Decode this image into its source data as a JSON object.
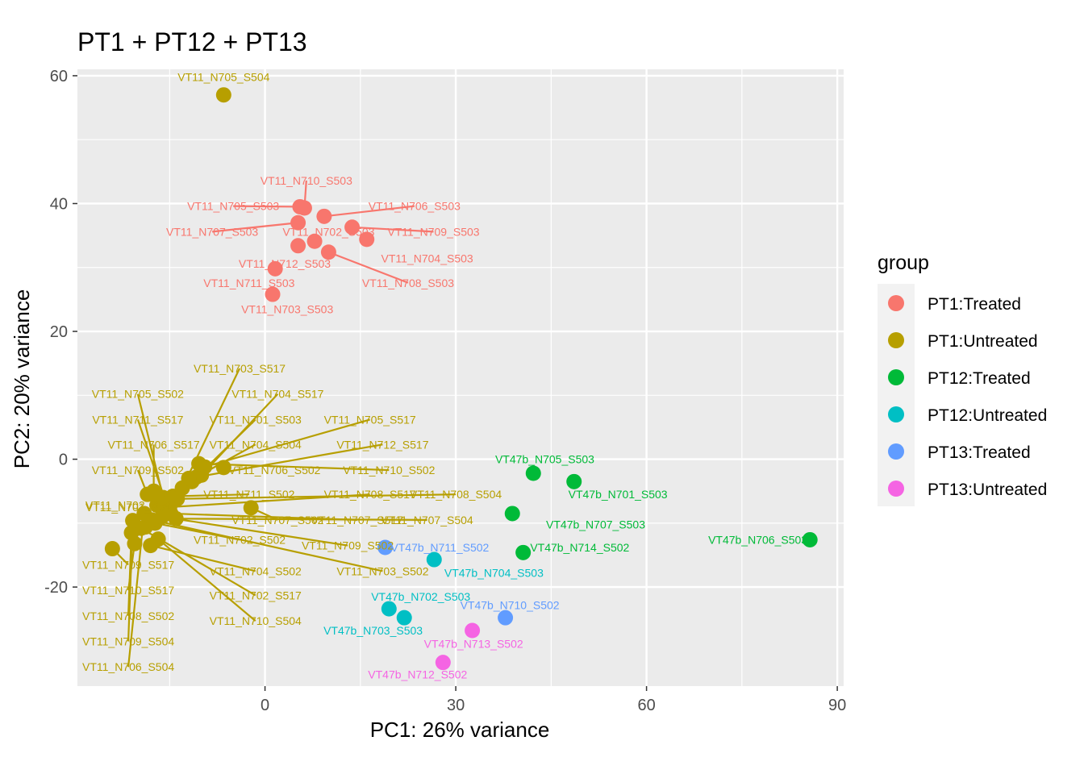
{
  "chart_data": {
    "type": "scatter",
    "title": "PT1 + PT12 + PT13",
    "xlabel": "PC1: 26% variance",
    "ylabel": "PC2: 20% variance",
    "xlim": [
      -29.5,
      91
    ],
    "ylim": [
      -35.5,
      61
    ],
    "xticks": [
      0,
      30,
      60,
      90
    ],
    "yticks": [
      -20,
      0,
      20,
      40,
      60
    ],
    "grid": true,
    "legend": {
      "title": "group",
      "position": "right",
      "entries": [
        {
          "name": "PT1:Treated",
          "color": "#F8766D"
        },
        {
          "name": "PT1:Untreated",
          "color": "#B79F00"
        },
        {
          "name": "PT12:Treated",
          "color": "#00BA38"
        },
        {
          "name": "PT12:Untreated",
          "color": "#00BFC4"
        },
        {
          "name": "PT13:Treated",
          "color": "#619CFF"
        },
        {
          "name": "PT13:Untreated",
          "color": "#F564E3"
        }
      ]
    },
    "points": [
      {
        "label": "VT11_N705_S504",
        "group": "PT1:Untreated",
        "x": -6.5,
        "y": 57.0,
        "lx": -6.5,
        "ly": 59.8,
        "leader": false
      },
      {
        "label": "VT11_N710_S503",
        "group": "PT1:Treated",
        "x": 6.2,
        "y": 39.3,
        "lx": 6.5,
        "ly": 43.6,
        "leader": true
      },
      {
        "label": "VT11_N705_S503",
        "group": "PT1:Treated",
        "x": 5.5,
        "y": 39.5,
        "lx": -5.0,
        "ly": 39.6,
        "leader": true
      },
      {
        "label": "VT11_N706_S503",
        "group": "PT1:Treated",
        "x": 9.3,
        "y": 38.0,
        "lx": 23.5,
        "ly": 39.6,
        "leader": true
      },
      {
        "label": "VT11_N707_S503",
        "group": "PT1:Treated",
        "x": 5.2,
        "y": 37.0,
        "lx": -8.3,
        "ly": 35.6,
        "leader": true
      },
      {
        "label": "VT11_N702_S503",
        "group": "PT1:Treated",
        "x": 7.8,
        "y": 34.1,
        "lx": 10.0,
        "ly": 35.6,
        "leader": false
      },
      {
        "label": "VT11_N709_S503",
        "group": "PT1:Treated",
        "x": 13.7,
        "y": 36.3,
        "lx": 26.5,
        "ly": 35.6,
        "leader": true
      },
      {
        "label": "VT11_N712_S503",
        "group": "PT1:Treated",
        "x": 5.2,
        "y": 33.4,
        "lx": 3.1,
        "ly": 30.6,
        "leader": false
      },
      {
        "label": "VT11_N704_S503",
        "group": "PT1:Treated",
        "x": 16.0,
        "y": 34.4,
        "lx": 25.5,
        "ly": 31.4,
        "leader": false
      },
      {
        "label": "VT11_N711_S503",
        "group": "PT1:Treated",
        "x": 1.6,
        "y": 29.8,
        "lx": -2.5,
        "ly": 27.6,
        "leader": false
      },
      {
        "label": "VT11_N708_S503",
        "group": "PT1:Treated",
        "x": 10.0,
        "y": 32.4,
        "lx": 22.5,
        "ly": 27.6,
        "leader": true
      },
      {
        "label": "VT11_N703_S503",
        "group": "PT1:Treated",
        "x": 1.2,
        "y": 25.8,
        "lx": 3.5,
        "ly": 23.5,
        "leader": false
      },
      {
        "label": "VT11_N703_S517",
        "group": "PT1:Untreated",
        "x": -13.0,
        "y": -4.5,
        "lx": -4.0,
        "ly": 14.2,
        "leader": true
      },
      {
        "label": "VT11_N705_S502",
        "group": "PT1:Untreated",
        "x": -16.0,
        "y": -6.0,
        "lx": -20.0,
        "ly": 10.2,
        "leader": true
      },
      {
        "label": "VT11_N704_S517",
        "group": "PT1:Untreated",
        "x": -10.0,
        "y": -2.5,
        "lx": 2.0,
        "ly": 10.2,
        "leader": true
      },
      {
        "label": "VT11_N711_S517",
        "group": "PT1:Untreated",
        "x": -15.5,
        "y": -7.0,
        "lx": -20.0,
        "ly": 6.2,
        "leader": true
      },
      {
        "label": "VT11_N701_S503",
        "group": "PT1:Untreated",
        "x": -11.5,
        "y": -3.5,
        "lx": -1.5,
        "ly": 6.2,
        "leader": true
      },
      {
        "label": "VT11_N705_S517",
        "group": "PT1:Untreated",
        "x": -9.5,
        "y": -1.2,
        "lx": 16.5,
        "ly": 6.2,
        "leader": true
      },
      {
        "label": "VT11_N706_S517",
        "group": "PT1:Untreated",
        "x": -17.5,
        "y": -5.0,
        "lx": -17.5,
        "ly": 2.3,
        "leader": true
      },
      {
        "label": "VT11_N704_S504",
        "group": "PT1:Untreated",
        "x": -10.8,
        "y": -2.8,
        "lx": -1.5,
        "ly": 2.3,
        "leader": true
      },
      {
        "label": "VT11_N712_S517",
        "group": "PT1:Untreated",
        "x": -12.0,
        "y": -3.0,
        "lx": 18.5,
        "ly": 2.3,
        "leader": true
      },
      {
        "label": "VT11_N706_S502",
        "group": "PT1:Untreated",
        "x": -6.5,
        "y": -1.3,
        "lx": 1.5,
        "ly": -1.7,
        "leader": false
      },
      {
        "label": "VT11_N710_S502",
        "group": "PT1:Untreated",
        "x": -10.4,
        "y": -0.7,
        "lx": 19.5,
        "ly": -1.7,
        "leader": true
      },
      {
        "label": "VT11_N709_S502",
        "group": "PT1:Untreated",
        "x": -18.5,
        "y": -5.5,
        "lx": -20.0,
        "ly": -1.7,
        "leader": true
      },
      {
        "label": "VT11_N711_S502",
        "group": "PT1:Untreated",
        "x": -14.5,
        "y": -5.8,
        "lx": -2.5,
        "ly": -5.5,
        "leader": true
      },
      {
        "label": "VT11_N708_S517",
        "group": "PT1:Untreated",
        "x": -15.0,
        "y": -7.5,
        "lx": 16.5,
        "ly": -5.5,
        "leader": true
      },
      {
        "label": "VT11_N708_S504",
        "group": "PT1:Untreated",
        "x": -13.8,
        "y": -6.2,
        "lx": 30.0,
        "ly": -5.5,
        "leader": true
      },
      {
        "label": "VT11_N702_S504",
        "group": "PT1:Untreated",
        "x": -17.0,
        "y": -7.2,
        "lx": -21.0,
        "ly": -7.2,
        "leader": false
      },
      {
        "label": "VT11_N707_S502",
        "group": "PT1:Untreated",
        "x": -2.2,
        "y": -7.6,
        "lx": 2.0,
        "ly": -9.5,
        "leader": true
      },
      {
        "label": "VT11_N707_S517",
        "group": "PT1:Untreated",
        "x": -14.8,
        "y": -8.5,
        "lx": 14.5,
        "ly": -9.5,
        "leader": true
      },
      {
        "label": "VT11_N707_S504",
        "group": "PT1:Untreated",
        "x": -14.0,
        "y": -9.3,
        "lx": 25.5,
        "ly": -9.5,
        "leader": true
      },
      {
        "label": "VT11_N701_S517",
        "group": "PT1:Untreated",
        "x": -18.8,
        "y": -10.6,
        "lx": -21.0,
        "ly": -7.5,
        "leader": false
      },
      {
        "label": "VT11_N702_S502",
        "group": "PT1:Untreated",
        "x": -17.3,
        "y": -10.0,
        "lx": -4.0,
        "ly": -12.6,
        "leader": true
      },
      {
        "label": "VT11_N709_S502",
        "group": "PT1:Untreated",
        "x": -16.2,
        "y": -9.0,
        "lx": 13.0,
        "ly": -13.5,
        "leader": true
      },
      {
        "label": "VT11_N703_S502",
        "group": "PT1:Untreated",
        "x": -17.8,
        "y": -9.5,
        "lx": 18.5,
        "ly": -17.5,
        "leader": true
      },
      {
        "label": "VT11_N709_S517",
        "group": "PT1:Untreated",
        "x": -24.0,
        "y": -14.0,
        "lx": -21.5,
        "ly": -16.5,
        "leader": true
      },
      {
        "label": "VT11_N704_S502",
        "group": "PT1:Untreated",
        "x": -18.0,
        "y": -13.5,
        "lx": -1.5,
        "ly": -17.5,
        "leader": true
      },
      {
        "label": "VT11_N710_S517",
        "group": "PT1:Untreated",
        "x": -20.5,
        "y": -13.2,
        "lx": -21.5,
        "ly": -20.5,
        "leader": true
      },
      {
        "label": "VT11_N702_S517",
        "group": "PT1:Untreated",
        "x": -19.5,
        "y": -10.8,
        "lx": -1.5,
        "ly": -21.3,
        "leader": true
      },
      {
        "label": "VT11_N708_S502",
        "group": "PT1:Untreated",
        "x": -21.0,
        "y": -11.5,
        "lx": -21.5,
        "ly": -24.5,
        "leader": true
      },
      {
        "label": "VT11_N710_S504",
        "group": "PT1:Untreated",
        "x": -16.8,
        "y": -12.5,
        "lx": -1.5,
        "ly": -25.3,
        "leader": true
      },
      {
        "label": "VT11_N709_S504",
        "group": "PT1:Untreated",
        "x": -20.8,
        "y": -9.6,
        "lx": -21.5,
        "ly": -28.5,
        "leader": true
      },
      {
        "label": "VT11_N706_S504",
        "group": "PT1:Untreated",
        "x": -19.0,
        "y": -8.5,
        "lx": -21.5,
        "ly": -32.5,
        "leader": true
      },
      {
        "label": "VT47b_N705_S503",
        "group": "PT12:Treated",
        "x": 42.2,
        "y": -2.2,
        "lx": 44.0,
        "ly": 0.0,
        "leader": false
      },
      {
        "label": "VT47b_N701_S503",
        "group": "PT12:Treated",
        "x": 48.6,
        "y": -3.5,
        "lx": 55.5,
        "ly": -5.5,
        "leader": false
      },
      {
        "label": "VT47b_N707_S503",
        "group": "PT12:Treated",
        "x": 38.9,
        "y": -8.5,
        "lx": 52.0,
        "ly": -10.2,
        "leader": false
      },
      {
        "label": "VT47b_N714_S502",
        "group": "PT12:Treated",
        "x": 40.6,
        "y": -14.6,
        "lx": 49.5,
        "ly": -13.8,
        "leader": false
      },
      {
        "label": "VT47b_N706_S503",
        "group": "PT12:Treated",
        "x": 85.7,
        "y": -12.6,
        "lx": 77.5,
        "ly": -12.6,
        "leader": false
      },
      {
        "label": "VT47b_N704_S503",
        "group": "PT12:Untreated",
        "x": 26.6,
        "y": -15.7,
        "lx": 36.0,
        "ly": -17.8,
        "leader": false
      },
      {
        "label": "VT47b_N702_S503",
        "group": "PT12:Untreated",
        "x": 19.5,
        "y": -23.4,
        "lx": 24.5,
        "ly": -21.5,
        "leader": false
      },
      {
        "label": "VT47b_N703_S503",
        "group": "PT12:Untreated",
        "x": 21.9,
        "y": -24.8,
        "lx": 17.0,
        "ly": -26.8,
        "leader": false
      },
      {
        "label": "VT47b_N711_S502",
        "group": "PT13:Treated",
        "x": 18.9,
        "y": -13.8,
        "lx": 27.5,
        "ly": -13.8,
        "leader": false
      },
      {
        "label": "VT47b_N710_S502",
        "group": "PT13:Treated",
        "x": 37.8,
        "y": -24.8,
        "lx": 38.5,
        "ly": -22.8,
        "leader": false
      },
      {
        "label": "VT47b_N713_S502",
        "group": "PT13:Untreated",
        "x": 32.6,
        "y": -26.8,
        "lx": 32.8,
        "ly": -28.9,
        "leader": false
      },
      {
        "label": "VT47b_N712_S502",
        "group": "PT13:Untreated",
        "x": 28.0,
        "y": -31.8,
        "lx": 24.0,
        "ly": -33.7,
        "leader": false
      }
    ]
  }
}
